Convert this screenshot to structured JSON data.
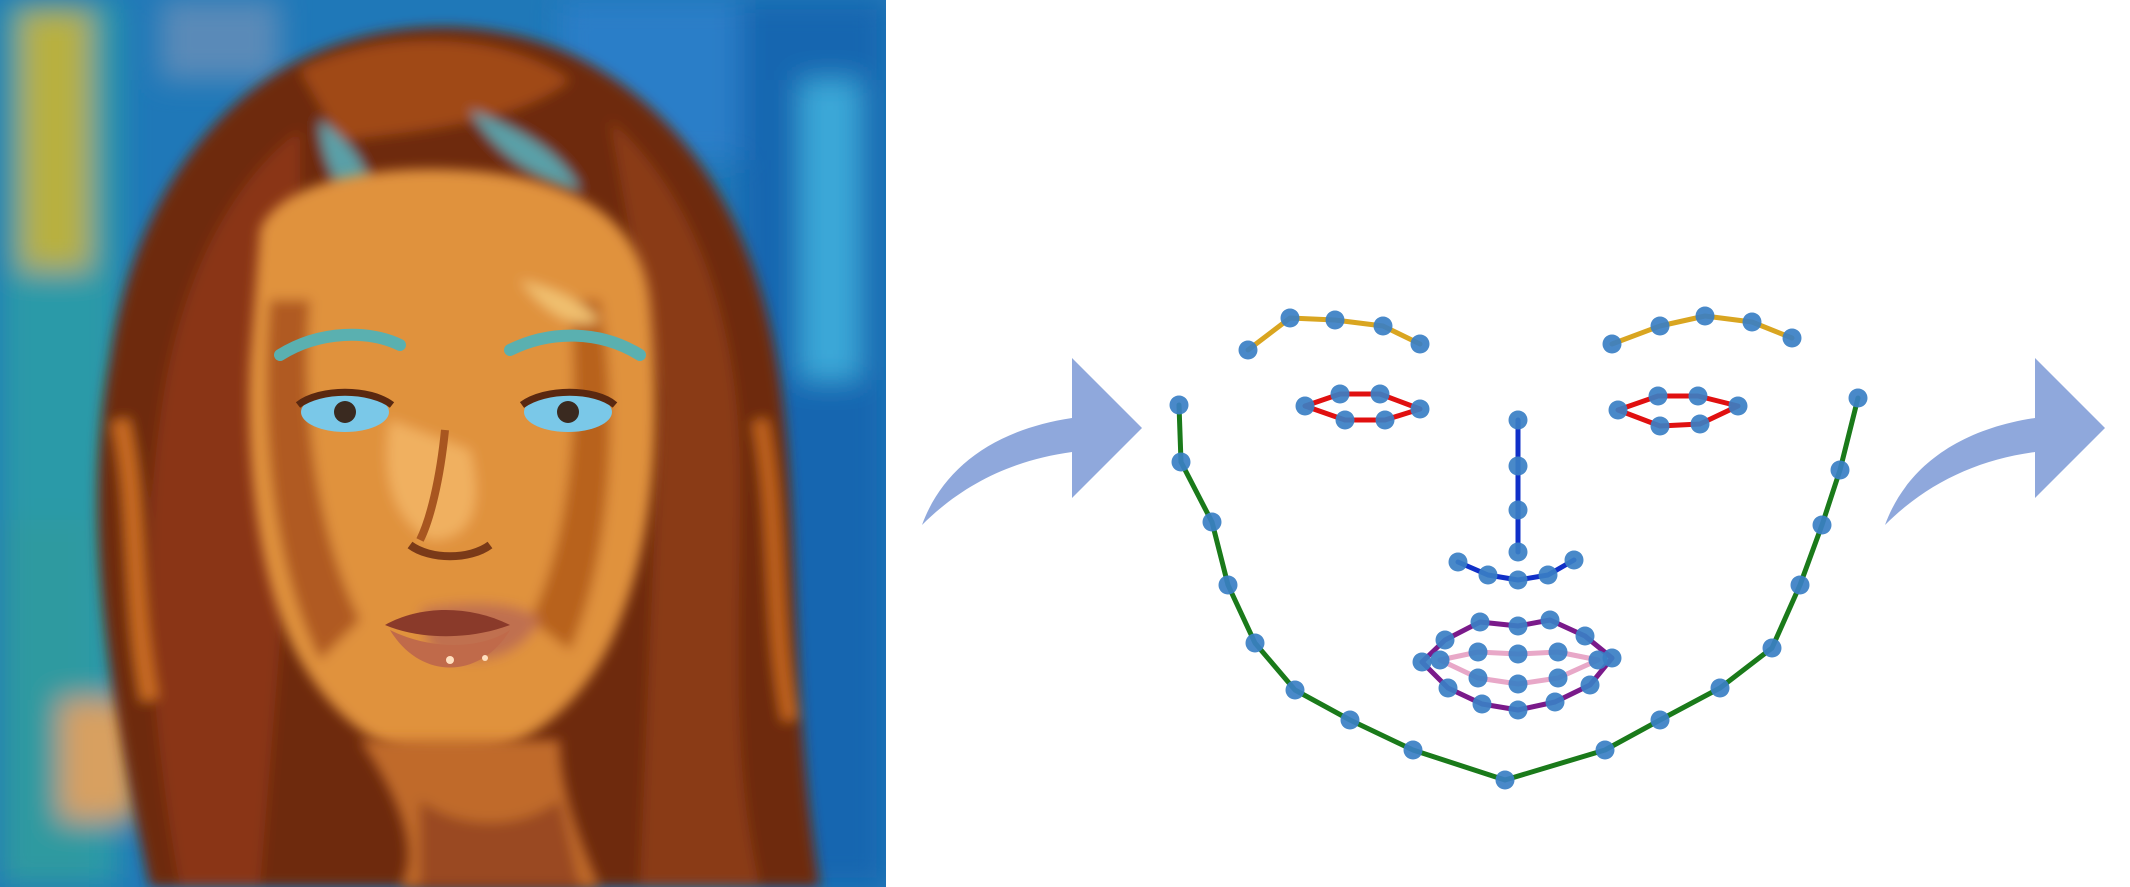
{
  "colors": {
    "background": "#ffffff",
    "arrow": "#8fa8dc",
    "landmark_point": "#3a7fc4",
    "jaw": "#1a7a1a",
    "eyebrow": "#d9a520",
    "eye": "#e01010",
    "nose": "#1030c8",
    "outer_lip": "#7a1a8a",
    "inner_lip": "#e8a8c8",
    "painting_background": "#1f78b8",
    "painting_hair": "#6e2a10",
    "painting_skin": "#e0923c",
    "painting_iris": "#6ab4e8"
  },
  "icons": {
    "portrait": "painted-portrait-image",
    "left_arrow": "curved-arrow-icon",
    "right_arrow": "curved-arrow-icon",
    "landmarks": "facial-landmark-icon"
  }
}
